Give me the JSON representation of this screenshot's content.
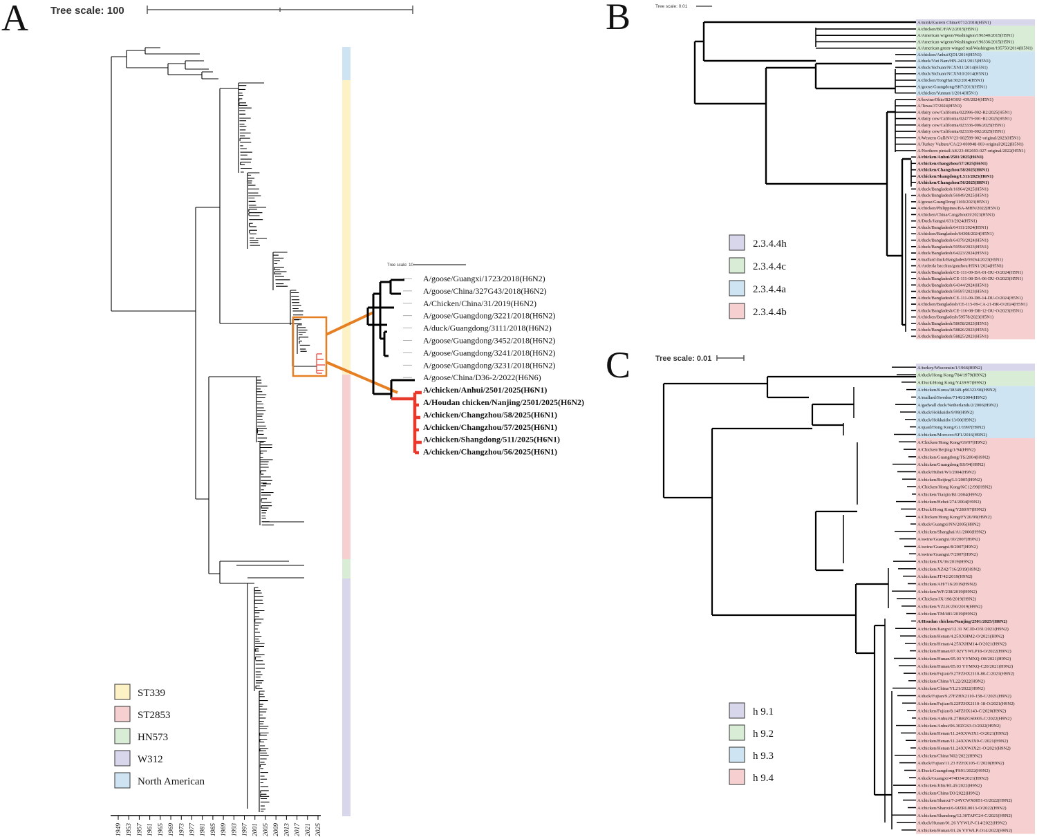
{
  "panels": {
    "A": {
      "letter": "A",
      "scale_label": "Tree scale: 100",
      "axis_years": [
        "1949",
        "1953",
        "1957",
        "1961",
        "1965",
        "1969",
        "1973",
        "1977",
        "1981",
        "1985",
        "1989",
        "1993",
        "1997",
        "2001",
        "2005",
        "2009",
        "2013",
        "2017",
        "2021",
        "2025"
      ],
      "legend": [
        {
          "label": "ST339",
          "color": "#fdf1c6"
        },
        {
          "label": "ST2853",
          "color": "#f6d0d0"
        },
        {
          "label": "HN573",
          "color": "#d9edd6"
        },
        {
          "label": "W312",
          "color": "#d8d6ea"
        },
        {
          "label": "North American",
          "color": "#cfe4f2"
        }
      ],
      "inset": {
        "scale_label": "Tree scale: 10",
        "leaves": [
          {
            "label": "A/goose/Guangxi/1723/2018(H6N2)",
            "bold": false
          },
          {
            "label": "A/goose/China/327G43/2018(H6N2)",
            "bold": false
          },
          {
            "label": "A/Chicken/China/31/2019(H6N2)",
            "bold": false
          },
          {
            "label": "A/goose/Guangdong/3221/2018(H6N2)",
            "bold": false
          },
          {
            "label": "A/duck/Guangdong/3111/2018(H6N2)",
            "bold": false
          },
          {
            "label": "A/goose/Guangdong/3452/2018(H6N2)",
            "bold": false
          },
          {
            "label": "A/goose/Guangdong/3241/2018(H6N2)",
            "bold": false
          },
          {
            "label": "A/goose/Guangdong/3231/2018(H6N2)",
            "bold": false
          },
          {
            "label": "A/goose/China/D36-2/2022(H6N6)",
            "bold": false
          },
          {
            "label": "A/chicken/Anhui/2501/2025(H6N1)",
            "bold": true
          },
          {
            "label": "A/Houdan chicken/Nanjing/2501/2025(H6N2)",
            "bold": true
          },
          {
            "label": "A/chicken/Changzhou/58/2025(H6N1)",
            "bold": true
          },
          {
            "label": "A/chicken/Changzhou/57/2025(H6N1)",
            "bold": true
          },
          {
            "label": "A/chicken/Shangdong/511/2025(H6N1)",
            "bold": true
          },
          {
            "label": "A/chicken/Changzhou/56/2025(H6N1)",
            "bold": true
          }
        ]
      }
    },
    "B": {
      "letter": "B",
      "scale_label": "Tree scale: 0.01",
      "legend": [
        {
          "label": "2.3.4.4h",
          "color": "#d8d6ea"
        },
        {
          "label": "2.3.4.4c",
          "color": "#d9edd6"
        },
        {
          "label": "2.3.4.4a",
          "color": "#cfe4f2"
        },
        {
          "label": "2.3.4.4b",
          "color": "#f6d0d0"
        }
      ],
      "leaves": [
        {
          "label": "A/mink/Eastern China/0712/2018(H5N1)",
          "clade": 0,
          "bold": false
        },
        {
          "label": "A/chicken/BC/FAV2/2015(H5N1)",
          "clade": 1,
          "bold": false
        },
        {
          "label": "A/American wigeon/Washington/196340/2015(H5N1)",
          "clade": 1,
          "bold": false
        },
        {
          "label": "A/American wigeon/Washington/196336/2015(H5N1)",
          "clade": 1,
          "bold": false
        },
        {
          "label": "A/American green-winged teal/Washington/195750/2014(H5N1)",
          "clade": 1,
          "bold": false
        },
        {
          "label": "A/chicken/Anhui/QD1/2014(H5N1)",
          "clade": 2,
          "bold": false
        },
        {
          "label": "A/duck/Viet Nam/HN-2431/2015(H5N1)",
          "clade": 2,
          "bold": false
        },
        {
          "label": "A/duck/Sichuan/NCXN11/2014(H5N1)",
          "clade": 2,
          "bold": false
        },
        {
          "label": "A/duck/Sichuan/NCXN10/2014(H5N1)",
          "clade": 2,
          "bold": false
        },
        {
          "label": "A/chicken/TongHai/302/2014(H5N1)",
          "clade": 2,
          "bold": false
        },
        {
          "label": "A/goose/Guangdong/SH7/2013(H5N1)",
          "clade": 2,
          "bold": false
        },
        {
          "label": "A/chicken/Yunnan/1/2014(H5N1)",
          "clade": 2,
          "bold": false
        },
        {
          "label": "A/bovine/Ohio/B24OSU-439/2024(H5N1)",
          "clade": 3,
          "bold": false
        },
        {
          "label": "A/Texas/37/2024(H5N1)",
          "clade": 3,
          "bold": false
        },
        {
          "label": "A/dairy cow/California/022996-002-R2/2025(H5N1)",
          "clade": 3,
          "bold": false
        },
        {
          "label": "A/dairy cow/California/024775-001-R2/2025(H5N1)",
          "clade": 3,
          "bold": false
        },
        {
          "label": "A/dairy cow/California/023336-006/2025(H5N1)",
          "clade": 3,
          "bold": false
        },
        {
          "label": "A/dairy cow/California/023336-002/2025(H5N1)",
          "clade": 3,
          "bold": false
        },
        {
          "label": "A/Western Gull/NV/23-002599-002-original/2023(H5N1)",
          "clade": 3,
          "bold": false
        },
        {
          "label": "A/Turkey Vulture/CA/23-000948-003-original/2022(H5N1)",
          "clade": 3,
          "bold": false
        },
        {
          "label": "A/Northern pintail/AK/23-002693-027-original/2022(H5N1)",
          "clade": 3,
          "bold": false
        },
        {
          "label": "A/chicken/Anhui/2501/2025(H6N1)",
          "clade": 3,
          "bold": true
        },
        {
          "label": "A/chicken/changzhou/57/2025(H6N1)",
          "clade": 3,
          "bold": true
        },
        {
          "label": "A/chicken/Changzhou/58/2025(H6N1)",
          "clade": 3,
          "bold": true
        },
        {
          "label": "A/chicken/Shangdong/L511/2025(H6N1)",
          "clade": 3,
          "bold": true
        },
        {
          "label": "A/chicken/Changzhou/56/2025(H6N1)",
          "clade": 3,
          "bold": true
        },
        {
          "label": "A/duck/Bangladesh/16964/2025(H5N1)",
          "clade": 3,
          "bold": false
        },
        {
          "label": "A/duck/Bangladesh/56949/2025(H5N1)",
          "clade": 3,
          "bold": false
        },
        {
          "label": "A/goose/GuangDong/1169/2023(H5N1)",
          "clade": 3,
          "bold": false
        },
        {
          "label": "A/chicken/Philippines/BA-MHN/2022(H5N1)",
          "clade": 3,
          "bold": false
        },
        {
          "label": "A/chicken/China/Cangzhou03/2023(H5N1)",
          "clade": 3,
          "bold": false
        },
        {
          "label": "A/Duck/Jiangxi/631/2024(H5N1)",
          "clade": 3,
          "bold": false
        },
        {
          "label": "A/duck/Bangladesh/64111/2024(H5N1)",
          "clade": 3,
          "bold": false
        },
        {
          "label": "A/chicken/Bangladesh/64308/2024(H5N1)",
          "clade": 3,
          "bold": false
        },
        {
          "label": "A/duck/Bangladesh/64379/2024(H5N1)",
          "clade": 3,
          "bold": false
        },
        {
          "label": "A/duck/Bangladesh/59594/2023(H5N1)",
          "clade": 3,
          "bold": false
        },
        {
          "label": "A/duck/Bangladesh/64223/2024(H5N1)",
          "clade": 3,
          "bold": false
        },
        {
          "label": "A/mallard duck/Bangladesh/59264/2023(H5N1)",
          "clade": 3,
          "bold": false
        },
        {
          "label": "A/Ardeola bacchus/ganzhou/H5N1/2024(H5N1)",
          "clade": 3,
          "bold": false
        },
        {
          "label": "A/duck/Bangladesh/CE-111-09-DA-01-DU-O/2024(H5N1)",
          "clade": 3,
          "bold": false
        },
        {
          "label": "A/duck/Bangladesh/CE-111-08-DA-06-DU-O/2023(H5N1)",
          "clade": 3,
          "bold": false
        },
        {
          "label": "A/duck/Bangladesh/64344/2024(H5N1)",
          "clade": 3,
          "bold": false
        },
        {
          "label": "A/duck/Bangladesh/59597/2023(H5N1)",
          "clade": 3,
          "bold": false
        },
        {
          "label": "A/duck/Bangladesh/CE-111-09-DB-14-DU-O/2024(H5N1)",
          "clade": 3,
          "bold": false
        },
        {
          "label": "A/chicken/Bangladesh/CE-115-09-CA-21-BR-O/2024(H5N1)",
          "clade": 3,
          "bold": false
        },
        {
          "label": "A/duck/Bangladesh/CE-116-08-DB-12-DU-O/2023(H5N1)",
          "clade": 3,
          "bold": false
        },
        {
          "label": "A/chicken/Bangladesh/59578/2023(H5N1)",
          "clade": 3,
          "bold": false
        },
        {
          "label": "A/duck/Bangladesh/58658/2023(H5N1)",
          "clade": 3,
          "bold": false
        },
        {
          "label": "A/duck/Bangladesh/58826/2023(H5N1)",
          "clade": 3,
          "bold": false
        },
        {
          "label": "A/duck/Bangladesh/58825/2023(H5N1)",
          "clade": 3,
          "bold": false
        }
      ]
    },
    "C": {
      "letter": "C",
      "scale_label": "Tree scale: 0.01",
      "legend": [
        {
          "label": "h 9.1",
          "color": "#d8d6ea"
        },
        {
          "label": "h 9.2",
          "color": "#d9edd6"
        },
        {
          "label": "h 9.3",
          "color": "#cfe4f2"
        },
        {
          "label": "h 9.4",
          "color": "#f6d0d0"
        }
      ],
      "leaves": [
        {
          "label": "A/turkey/Wisconsin/1/1966(H9N2)",
          "clade": 0,
          "bold": false
        },
        {
          "label": "A/duck/Hong Kong/784/1979(H9N2)",
          "clade": 1,
          "bold": false
        },
        {
          "label": "A/Duck/Hong Kong/Y439/97(H9N2)",
          "clade": 1,
          "bold": false
        },
        {
          "label": "A/chicken/Korea/38349-p96323/96(H9N2)",
          "clade": 2,
          "bold": false
        },
        {
          "label": "A/mallard/Sweden/7146/2004(H9N2)",
          "clade": 2,
          "bold": false
        },
        {
          "label": "A/gadwall duck/Netherlands/2/2006(H9N2)",
          "clade": 2,
          "bold": false
        },
        {
          "label": "A/duck/Hokkaido/9/99(H9N2)",
          "clade": 2,
          "bold": false
        },
        {
          "label": "A/duck/Hokkaido/13/00(H9N2)",
          "clade": 2,
          "bold": false
        },
        {
          "label": "A/quail/Hong Kong/G1/1997(H9N2)",
          "clade": 2,
          "bold": false
        },
        {
          "label": "A/chicken/Morocco/SF1/2016(H9N2)",
          "clade": 2,
          "bold": false
        },
        {
          "label": "A/Chicken/Hong Kong/G9/97(H9N2)",
          "clade": 3,
          "bold": false
        },
        {
          "label": "A/Chicken/Beijing/1/94(H9N2)",
          "clade": 3,
          "bold": false
        },
        {
          "label": "A/chicken/Guangdong/TS/2004(H9N2)",
          "clade": 3,
          "bold": false
        },
        {
          "label": "A/chicken/Guangdong/SS/94(H9N2)",
          "clade": 3,
          "bold": false
        },
        {
          "label": "A/duck/Hubei/W1/2004(H9N2)",
          "clade": 3,
          "bold": false
        },
        {
          "label": "A/chicken/Beijing/L1/2005(H9N2)",
          "clade": 3,
          "bold": false
        },
        {
          "label": "A/Chicken/Hong Kong/KC12/99(H9N2)",
          "clade": 3,
          "bold": false
        },
        {
          "label": "A/chicken/Tianjin/B1/2004(H9N2)",
          "clade": 3,
          "bold": false
        },
        {
          "label": "A/chicken/Hebei/274/2004(H9N2)",
          "clade": 3,
          "bold": false
        },
        {
          "label": "A/Duck/Hong Kong/Y280/97(H9N2)",
          "clade": 3,
          "bold": false
        },
        {
          "label": "A/Chicken/Hong Kong/FY20/99(H9N2)",
          "clade": 3,
          "bold": false
        },
        {
          "label": "A/duck/Guangxi/NN/2005(H9N2)",
          "clade": 3,
          "bold": false
        },
        {
          "label": "A/chicken/Shanghai/A1/2000(H9N2)",
          "clade": 3,
          "bold": false
        },
        {
          "label": "A/swine/Guangxi/10/2007(H9N2)",
          "clade": 3,
          "bold": false
        },
        {
          "label": "A/swine/Guangxi/8/2007(H9N2)",
          "clade": 3,
          "bold": false
        },
        {
          "label": "A/swine/Guangxi/7/2007(H9N2)",
          "clade": 3,
          "bold": false
        },
        {
          "label": "A/chicken/JX/36/2019(H9N2)",
          "clade": 3,
          "bold": false
        },
        {
          "label": "A/chicken/XZ42/716/2019(H9N2)",
          "clade": 3,
          "bold": false
        },
        {
          "label": "A/chicken/JT/42/2019(H9N2)",
          "clade": 3,
          "bold": false
        },
        {
          "label": "A/chicken/AH/716/2019(H9N2)",
          "clade": 3,
          "bold": false
        },
        {
          "label": "A/chicken/WF/238/2019(H9N2)",
          "clade": 3,
          "bold": false
        },
        {
          "label": "A/Chicken/JX/198/2019(H9N2)",
          "clade": 3,
          "bold": false
        },
        {
          "label": "A/chicken/YZLH/250/2019(H9N2)",
          "clade": 3,
          "bold": false
        },
        {
          "label": "A/chicken/TM/481/2019(H9N2)",
          "clade": 3,
          "bold": false
        },
        {
          "label": "A/Houdan chicken/Nanjing/2501/2025/(H6N2)",
          "clade": 3,
          "bold": true
        },
        {
          "label": "A/chicken/Jiangxi/12.31 NCJD-O31/2021(H9N2)",
          "clade": 3,
          "bold": false
        },
        {
          "label": "A/chicken/Henan/4.25XXHM2-O/2021(H9N2)",
          "clade": 3,
          "bold": false
        },
        {
          "label": "A/chicken/Henan/4.25XXHM14-O/2021(H9N2)",
          "clade": 3,
          "bold": false
        },
        {
          "label": "A/chicken/Hunan/07.02YYWLP18-O/2022(H9N2)",
          "clade": 3,
          "bold": false
        },
        {
          "label": "A/chicken/Hunan/05.03 YYMXQ-O8/2021(H9N2)",
          "clade": 3,
          "bold": false
        },
        {
          "label": "A/chicken/Hunan/05.03 YYMXQ-C20/2021(H9N2)",
          "clade": 3,
          "bold": false
        },
        {
          "label": "A/chicken/Fujian/9.27FZHX2110-80-C/2021(H9N2)",
          "clade": 3,
          "bold": false
        },
        {
          "label": "A/chicken/China/YL22/2022(H9N2)",
          "clade": 3,
          "bold": false
        },
        {
          "label": "A/chicken/China/YL21/2022(H9N2)",
          "clade": 3,
          "bold": false
        },
        {
          "label": "A/duck/Fujian/9.27FZHX2110-158-C/2021(H9N2)",
          "clade": 3,
          "bold": false
        },
        {
          "label": "A/chicken/Fujian/8.22FZHX2110-18-O/2021(H9N2)",
          "clade": 3,
          "bold": false
        },
        {
          "label": "A/chicken/Fujian/8.14FZHX143-C/2020(H9N2)",
          "clade": 3,
          "bold": false
        },
        {
          "label": "A/chicken/Anhui/8-27BBZGS0005-C/2022(H9N2)",
          "clade": 3,
          "bold": false
        },
        {
          "label": "A/chicken/Anhui/06.30ZGS3-O/2022(H9N2)",
          "clade": 3,
          "bold": false
        },
        {
          "label": "A/chicken/Henan/11.24XXWJX1-O/2021(H9N2)",
          "clade": 3,
          "bold": false
        },
        {
          "label": "A/chicken/Henan/11.24XXWJX9-C/2021(H9N2)",
          "clade": 3,
          "bold": false
        },
        {
          "label": "A/chicken/Henan/11.24XXWJX21-O/2021(H9N2)",
          "clade": 3,
          "bold": false
        },
        {
          "label": "A/chicken/China/N02/2022(H9N2)",
          "clade": 3,
          "bold": false
        },
        {
          "label": "A/duck/Fujian/11.23 FZHX105-C/2020(H9N2)",
          "clade": 3,
          "bold": false
        },
        {
          "label": "A/Duck/Guangdong/FS91/2022(H9N2)",
          "clade": 3,
          "bold": false
        },
        {
          "label": "A/duck/Guangxi/474D34/2021(H9N2)",
          "clade": 3,
          "bold": false
        },
        {
          "label": "A/chicken/Jilin/HL45/2022(H9N2)",
          "clade": 3,
          "bold": false
        },
        {
          "label": "A/chicken/China/D3/2022(H9N2)",
          "clade": 3,
          "bold": false
        },
        {
          "label": "A/chicken/Shanxi/7-24YCWX0051-O/2022(H9N2)",
          "clade": 3,
          "bold": false
        },
        {
          "label": "A/chicken/Shanxi/6-9JZRL0013-O/2022(H9N2)",
          "clade": 3,
          "bold": false
        },
        {
          "label": "A/chicken/Shandong/12.30TAFC24-C/2021(H9N2)",
          "clade": 3,
          "bold": false
        },
        {
          "label": "A/duck/Hunan/01.26 YYWLP-C14/2022(H9N2)",
          "clade": 3,
          "bold": false
        },
        {
          "label": "A/chicken/Hunan/01.26 YYWLP-O14/2022(H9N2)",
          "clade": 3,
          "bold": false
        }
      ]
    }
  }
}
